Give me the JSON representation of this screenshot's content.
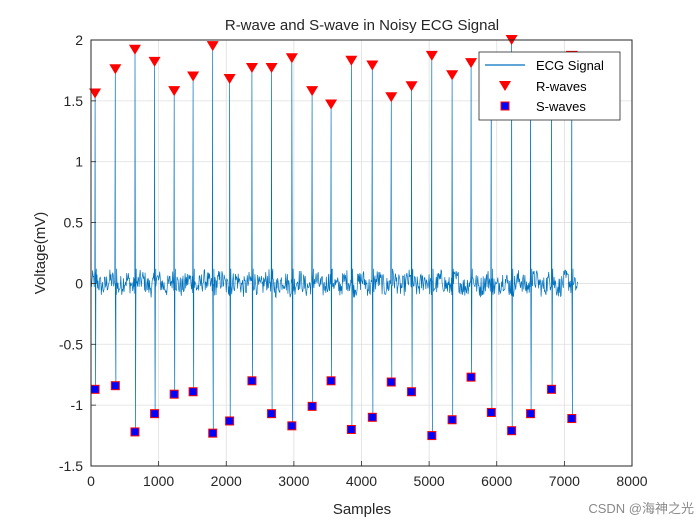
{
  "chart_data": {
    "type": "line",
    "title": "R-wave and S-wave in Noisy ECG Signal",
    "xlabel": "Samples",
    "ylabel": "Voltage(mV)",
    "xlim": [
      0,
      8000
    ],
    "ylim": [
      -1.5,
      2
    ],
    "xticks": [
      "0",
      "1000",
      "2000",
      "3000",
      "4000",
      "5000",
      "6000",
      "7000",
      "8000"
    ],
    "yticks": [
      "-1.5",
      "-1",
      "-0.5",
      "0",
      "0.5",
      "1",
      "1.5",
      "2"
    ],
    "grid": true,
    "legend_position": "top-right",
    "signal_range": [
      0,
      7200
    ],
    "series": [
      {
        "name": "ECG Signal",
        "kind": "line",
        "color": "#0072BD"
      },
      {
        "name": "R-waves",
        "kind": "marker",
        "marker": "triangle-down",
        "color": "#FF0000",
        "x": [
          60,
          360,
          650,
          940,
          1230,
          1510,
          1800,
          2050,
          2380,
          2670,
          2970,
          3270,
          3550,
          3850,
          4160,
          4440,
          4740,
          5040,
          5340,
          5620,
          5920,
          6220,
          6500,
          6810,
          7110
        ],
        "y": [
          1.56,
          1.76,
          1.92,
          1.82,
          1.58,
          1.7,
          1.95,
          1.68,
          1.77,
          1.77,
          1.85,
          1.58,
          1.47,
          1.83,
          1.79,
          1.53,
          1.62,
          1.87,
          1.71,
          1.81,
          1.8,
          2.0,
          1.83,
          1.8,
          1.87
        ]
      },
      {
        "name": "S-waves",
        "kind": "marker",
        "marker": "square",
        "color": "#0000FF",
        "edge_color": "#FF0000",
        "x": [
          60,
          360,
          650,
          940,
          1230,
          1510,
          1800,
          2050,
          2380,
          2670,
          2970,
          3270,
          3550,
          3850,
          4160,
          4440,
          4740,
          5040,
          5340,
          5620,
          5920,
          6220,
          6500,
          6810,
          7110
        ],
        "y": [
          -0.87,
          -0.84,
          -1.22,
          -1.07,
          -0.91,
          -0.89,
          -1.23,
          -1.13,
          -0.8,
          -1.07,
          -1.17,
          -1.01,
          -0.8,
          -1.2,
          -1.1,
          -0.81,
          -0.89,
          -1.25,
          -1.12,
          -0.77,
          -1.06,
          -1.21,
          -1.07,
          -0.87,
          -1.11
        ]
      }
    ]
  },
  "watermark": "CSDN @海神之光"
}
